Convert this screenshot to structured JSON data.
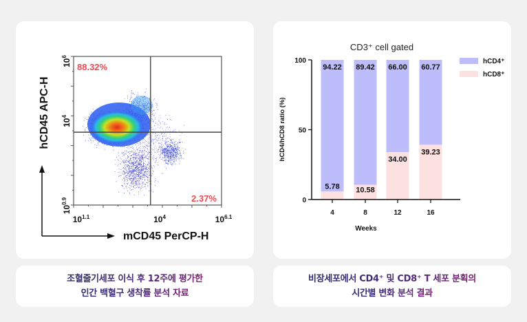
{
  "chart_data": [
    {
      "type": "scatter",
      "subtype": "flow-cytometry-density-plot",
      "xlabel": "mCD45 PerCP-H",
      "ylabel": "hCD45 APC-H",
      "x_scale": "log",
      "y_scale": "log",
      "xlim_log10": [
        1.1,
        6.1
      ],
      "ylim_log10": [
        0.9,
        6
      ],
      "x_ticks": [
        {
          "base": "10",
          "exp": "1.1"
        },
        {
          "base": "10",
          "exp": "4"
        },
        {
          "base": "10",
          "exp": "6.1"
        }
      ],
      "y_ticks": [
        {
          "base": "10",
          "exp": "0.9"
        },
        {
          "base": "10",
          "exp": "4"
        },
        {
          "base": "10",
          "exp": "6"
        }
      ],
      "gates": {
        "x_log10": 3.7,
        "y_log10": 3.4
      },
      "quadrant_labels": {
        "upper_left": "88.32%",
        "lower_right": "2.37%"
      },
      "annotation_color": "#f0494f"
    },
    {
      "type": "bar",
      "stacked": true,
      "title": "CD3⁺ cell gated",
      "xlabel": "Weeks",
      "ylabel": "hCD4/hCD8 ratio (%)",
      "categories": [
        "4",
        "8",
        "12",
        "16"
      ],
      "ylim": [
        0,
        100
      ],
      "y_ticks": [
        "0",
        "50",
        "100"
      ],
      "series": [
        {
          "name": "hCD8⁺",
          "color": "#fde0e0",
          "values": [
            5.78,
            10.58,
            34.0,
            39.23
          ],
          "labels": [
            "5.78",
            "10.58",
            "34.00",
            "39.23"
          ]
        },
        {
          "name": "hCD4⁺",
          "color": "#bdbdfb",
          "values": [
            94.22,
            89.42,
            66.0,
            60.77
          ],
          "labels": [
            "94.22",
            "89.42",
            "66.00",
            "60.77"
          ]
        }
      ],
      "legend_position": "top-right"
    }
  ],
  "captions": {
    "left": [
      "조혈줄기세포 이식 후 12주에 평가한",
      "인간 백혈구 생착률 분석 자료"
    ],
    "right": [
      "비장세포에서 CD4⁺ 및 CD8⁺ T 세포 분획의",
      "시간별 변화 분석 결과"
    ]
  }
}
